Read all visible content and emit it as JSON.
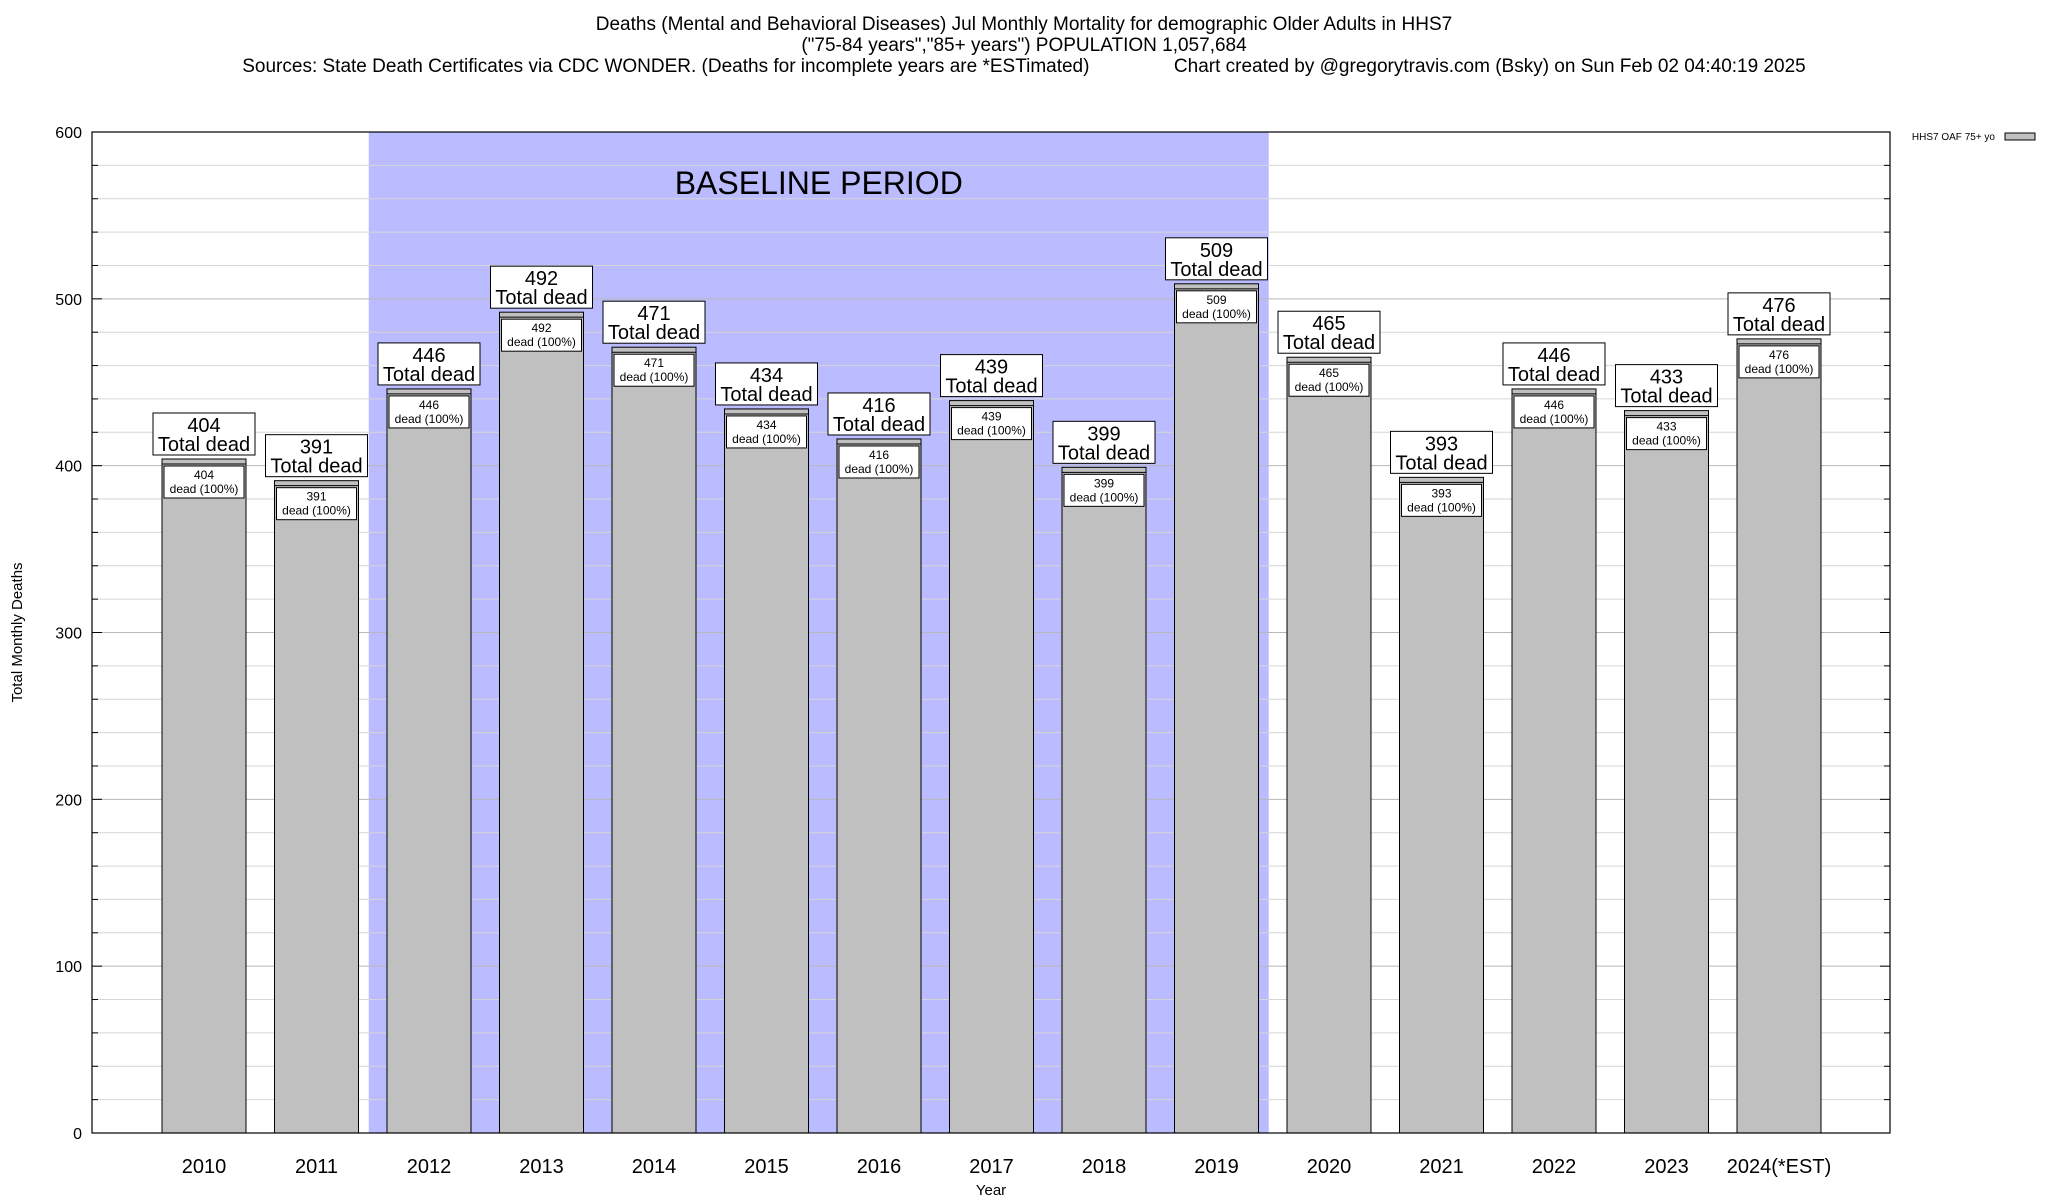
{
  "title": {
    "line1": "Deaths (Mental and Behavioral Diseases) Jul Monthly Mortality for demographic Older Adults in HHS7",
    "line2": "(\"75-84 years\",\"85+ years\") POPULATION 1,057,684",
    "line3": "Sources: State Death Certificates via CDC WONDER. (Deaths for incomplete years are *ESTimated)                Chart created by @gregorytravis.com (Bsky) on Sun Feb 02 04:40:19 2025"
  },
  "chart_data": {
    "type": "bar",
    "categories": [
      "2010",
      "2011",
      "2012",
      "2013",
      "2014",
      "2015",
      "2016",
      "2017",
      "2018",
      "2019",
      "2020",
      "2021",
      "2022",
      "2023",
      "2024(*EST)"
    ],
    "series": [
      {
        "name": "HHS7 OAF 75+ yo",
        "values": [
          404,
          391,
          446,
          492,
          471,
          434,
          416,
          439,
          399,
          509,
          465,
          393,
          446,
          433,
          476
        ],
        "color": "#c0c0c0"
      }
    ],
    "outer_label_suffix": "Total dead",
    "inner_label_suffix": "dead (100%)",
    "xlabel": "Year",
    "ylabel": "Total Monthly Deaths",
    "ylim": [
      0,
      600
    ],
    "yticks": [
      0,
      100,
      200,
      300,
      400,
      500,
      600
    ],
    "grid": true,
    "legend_position": "top-right",
    "baseline_period": {
      "label": "BASELINE PERIOD",
      "start_category": "2012",
      "end_category": "2019",
      "color": "#bbbbff"
    }
  }
}
